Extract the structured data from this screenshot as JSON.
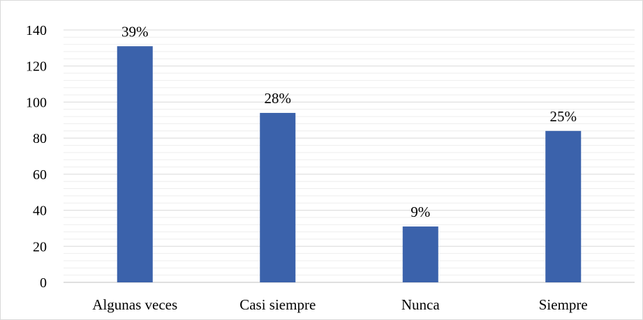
{
  "chart_data": {
    "type": "bar",
    "categories": [
      "Algunas veces",
      "Casi siempre",
      "Nunca",
      "Siempre"
    ],
    "values": [
      131,
      94,
      31,
      84
    ],
    "data_labels": [
      "39%",
      "28%",
      "9%",
      "25%"
    ],
    "title": "",
    "xlabel": "",
    "ylabel": "",
    "ylim": [
      0,
      140
    ],
    "yticks": [
      "0",
      "20",
      "40",
      "60",
      "80",
      "100",
      "120",
      "140"
    ],
    "grid": true,
    "minor_grid": true,
    "legend": "none",
    "bar_color": "#3b62ab"
  }
}
